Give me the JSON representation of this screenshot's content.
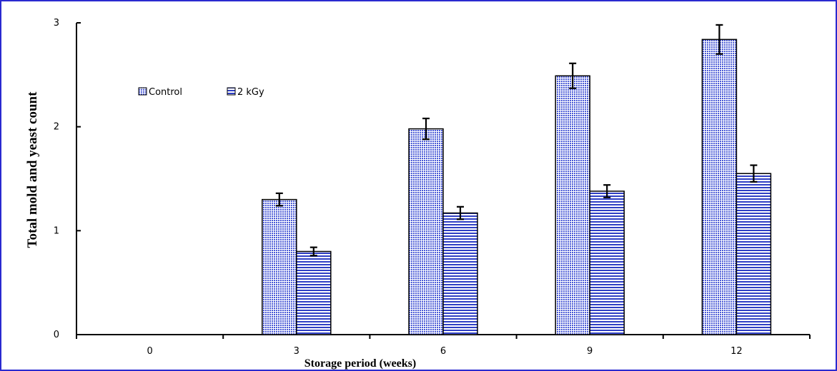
{
  "chart_data": {
    "type": "bar",
    "title": "",
    "xlabel": "Storage period  (weeks)",
    "ylabel": "Total mold and yeast count",
    "categories": [
      "0",
      "3",
      "6",
      "9",
      "12"
    ],
    "series": [
      {
        "name": "Control",
        "values": [
          0,
          1.3,
          1.98,
          2.49,
          2.84
        ],
        "errors": [
          0,
          0.06,
          0.1,
          0.12,
          0.14
        ]
      },
      {
        "name": "2 kGy",
        "values": [
          0,
          0.8,
          1.17,
          1.38,
          1.55
        ],
        "errors": [
          0,
          0.04,
          0.06,
          0.06,
          0.08
        ]
      }
    ],
    "ylim": [
      0,
      3
    ],
    "yticks": [
      "0",
      "1",
      "2",
      "3"
    ],
    "grid": false,
    "legend_position": "top-left",
    "colors": {
      "bar_fill": "#2f3fc4",
      "border": "#2a2ad0"
    }
  }
}
